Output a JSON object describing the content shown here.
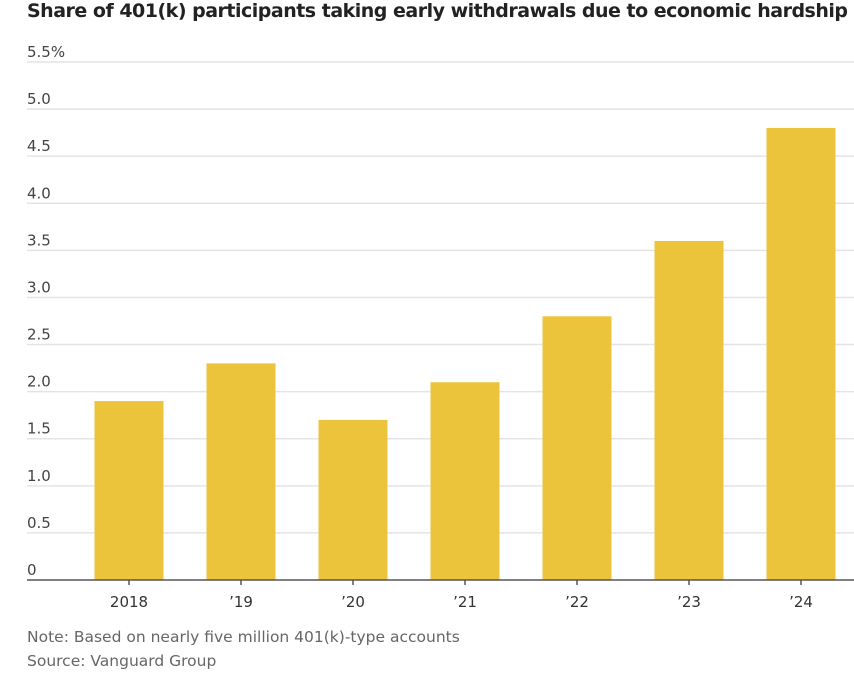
{
  "chart_data": {
    "type": "bar",
    "title": "Share of 401(k) participants taking early withdrawals due to economic hardship",
    "categories": [
      "2018",
      "’19",
      "’20",
      "’21",
      "’22",
      "’23",
      "’24"
    ],
    "values": [
      1.9,
      2.3,
      1.7,
      2.1,
      2.8,
      3.6,
      4.8
    ],
    "ylim": [
      0,
      5.5
    ],
    "yticks": [
      0,
      0.5,
      1.0,
      1.5,
      2.0,
      2.5,
      3.0,
      3.5,
      4.0,
      4.5,
      5.0,
      5.5
    ],
    "ytick_labels": [
      "0",
      "0.5",
      "1.0",
      "1.5",
      "2.0",
      "2.5",
      "3.0",
      "3.5",
      "4.0",
      "4.5",
      "5.0",
      "5.5%"
    ],
    "xlabel": "",
    "ylabel": "",
    "grid": true,
    "bar_color": "#ecc43c",
    "note": "Note: Based on nearly five million 401(k)-type accounts",
    "source": "Source: Vanguard Group"
  }
}
